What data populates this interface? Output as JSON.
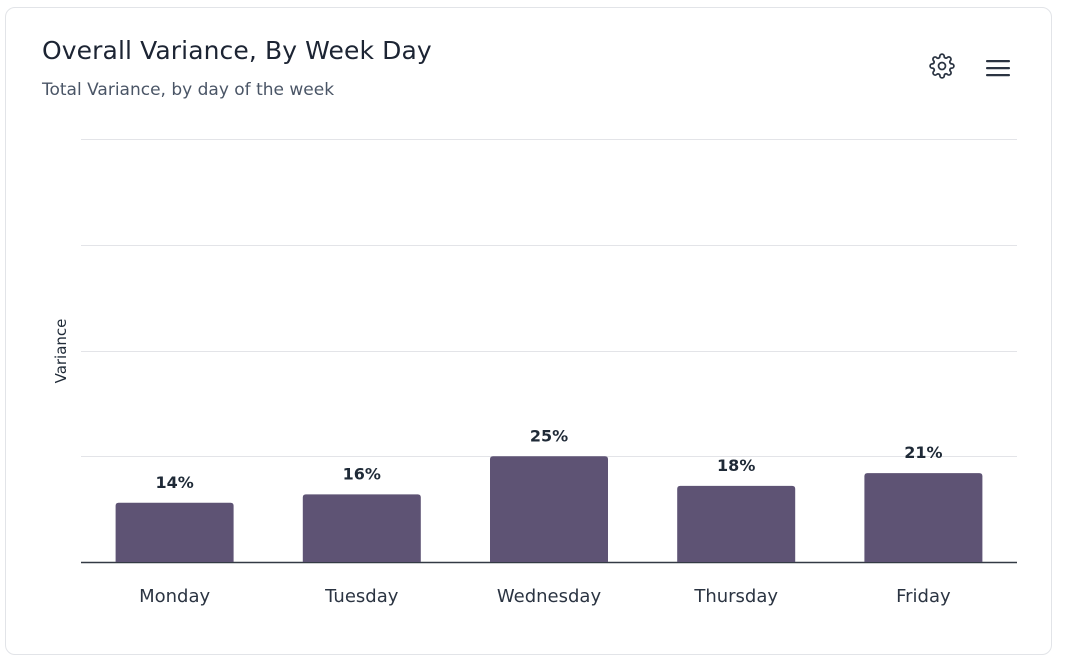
{
  "header": {
    "title": "Overall Variance, By Week Day",
    "subtitle": "Total Variance, by day of the week"
  },
  "toolbar": {
    "settings_icon": "gear-icon",
    "menu_icon": "hamburger-menu-icon"
  },
  "colors": {
    "bar": "#5e5374",
    "grid": "#e3e4e8",
    "axis": "#333a44",
    "label": "#1f2a37"
  },
  "chart_data": {
    "type": "bar",
    "title": "Overall Variance, By Week Day",
    "subtitle": "Total Variance, by day of the week",
    "xlabel": "",
    "ylabel": "Variance",
    "categories": [
      "Monday",
      "Tuesday",
      "Wednesday",
      "Thursday",
      "Friday"
    ],
    "values": [
      14,
      16,
      25,
      18,
      21
    ],
    "data_labels": [
      "14%",
      "16%",
      "25%",
      "18%",
      "21%"
    ],
    "ylim": [
      0,
      100
    ],
    "grid": true,
    "legend": "none"
  }
}
